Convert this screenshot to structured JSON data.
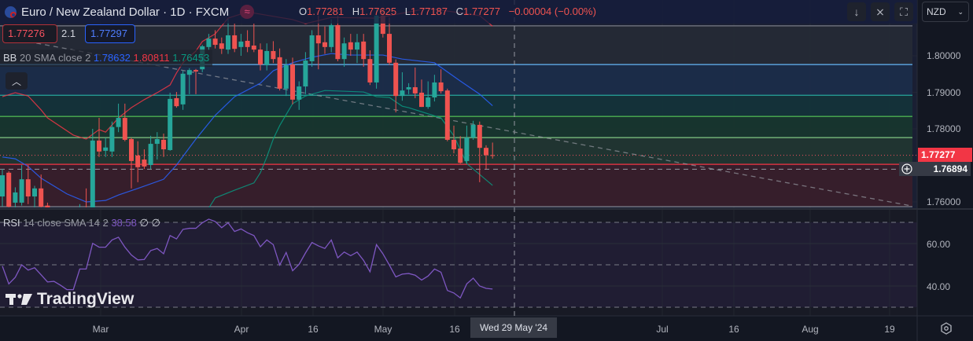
{
  "header": {
    "symbol_title": "Euro / New Zealand Dollar · 1D · FXCM",
    "ohlc": [
      {
        "key": "O",
        "value": "1.77281"
      },
      {
        "key": "H",
        "value": "1.77625"
      },
      {
        "key": "L",
        "value": "1.77187"
      },
      {
        "key": "C",
        "value": "1.77277"
      }
    ],
    "change": "−0.00004 (−0.00%)",
    "currency": "NZD"
  },
  "quotes": {
    "sell": "1.77276",
    "spread": "2.1",
    "buy": "1.77297"
  },
  "bb_legend": {
    "label": "BB",
    "params": "20 SMA close 2",
    "basis": "1.78632",
    "upper": "1.80811",
    "lower": "1.76453"
  },
  "rsi_legend": {
    "label": "RSI",
    "params": "14 close SMA 14 2",
    "value": "38.58",
    "extra1": "∅",
    "extra2": "∅"
  },
  "price_axis": {
    "ticks": [
      "1.80000",
      "1.79000",
      "1.78000",
      "1.76000"
    ],
    "last_price": "1.77277",
    "crosshair_price": "1.76894"
  },
  "rsi_axis": {
    "ticks": [
      "60.00",
      "40.00"
    ]
  },
  "time_axis": {
    "labels": [
      "Mar",
      "Apr",
      "16",
      "May",
      "16",
      "Jul",
      "16",
      "Aug",
      "19"
    ],
    "crosshair_date": "Wed 29 May '24"
  },
  "brand": "TradingView",
  "colors": {
    "up": "#26a69a",
    "down": "#ef5350",
    "bb_basis": "#2962ff",
    "bb_upper": "#f23645",
    "bb_lower": "#089981",
    "rsi": "#7e57c2"
  },
  "icons": [
    "scroll-down-icon",
    "collapse-icon",
    "fullscreen-icon",
    "chevron-down-icon",
    "plus-circle-icon",
    "settings-icon"
  ],
  "chart_data": {
    "type": "candlestick",
    "ohlc": [
      [
        1.7615,
        1.769,
        1.7587,
        1.7673
      ],
      [
        1.768,
        1.7684,
        1.7575,
        1.7587
      ],
      [
        1.7598,
        1.764,
        1.758,
        1.7626
      ],
      [
        1.7598,
        1.7701,
        1.759,
        1.7662
      ],
      [
        1.7662,
        1.7701,
        1.7594,
        1.7615
      ],
      [
        1.7615,
        1.7644,
        1.758,
        1.7637
      ],
      [
        1.7637,
        1.7675,
        1.757,
        1.7587
      ],
      [
        1.759,
        1.7598,
        1.756,
        1.757
      ],
      [
        1.757,
        1.758,
        1.753,
        1.7545
      ],
      [
        1.7545,
        1.756,
        1.751,
        1.7525
      ],
      [
        1.7525,
        1.755,
        1.75,
        1.754
      ],
      [
        1.754,
        1.7565,
        1.7515,
        1.753
      ],
      [
        1.753,
        1.7594,
        1.752,
        1.756
      ],
      [
        1.758,
        1.7637,
        1.754,
        1.756
      ],
      [
        1.755,
        1.78,
        1.754,
        1.7768
      ],
      [
        1.7768,
        1.783,
        1.7723,
        1.7738
      ],
      [
        1.774,
        1.7776,
        1.7723,
        1.7749
      ],
      [
        1.7738,
        1.782,
        1.7723,
        1.7805
      ],
      [
        1.7805,
        1.7869,
        1.7791,
        1.783
      ],
      [
        1.783,
        1.7869,
        1.7766,
        1.777
      ],
      [
        1.7772,
        1.7776,
        1.7637,
        1.7712
      ],
      [
        1.7727,
        1.7766,
        1.7654,
        1.7695
      ],
      [
        1.7716,
        1.7744,
        1.769,
        1.7697
      ],
      [
        1.7701,
        1.7781,
        1.769,
        1.7759
      ],
      [
        1.7759,
        1.7791,
        1.7716,
        1.7772
      ],
      [
        1.777,
        1.7787,
        1.7723,
        1.7744
      ],
      [
        1.7742,
        1.7899,
        1.774,
        1.7882
      ],
      [
        1.7884,
        1.7901,
        1.7858,
        1.7862
      ],
      [
        1.7867,
        1.7959,
        1.7852,
        1.7951
      ],
      [
        1.7948,
        1.7966,
        1.7895,
        1.7961
      ],
      [
        1.7961,
        1.7964,
        1.7895,
        1.7957
      ],
      [
        1.7963,
        1.803,
        1.7955,
        1.8026
      ],
      [
        1.8024,
        1.806,
        1.8015,
        1.8047
      ],
      [
        1.8047,
        1.807,
        1.802,
        1.803
      ],
      [
        1.8034,
        1.805,
        1.8005,
        1.8019
      ],
      [
        1.8017,
        1.8101,
        1.8005,
        1.8056
      ],
      [
        1.8056,
        1.8088,
        1.801,
        1.8019
      ],
      [
        1.8024,
        1.806,
        1.8,
        1.8039
      ],
      [
        1.8041,
        1.807,
        1.801,
        1.8024
      ],
      [
        1.8028,
        1.8088,
        1.801,
        1.8017
      ],
      [
        1.8017,
        1.8034,
        1.796,
        1.7976
      ],
      [
        1.7974,
        1.8034,
        1.796,
        1.8013
      ],
      [
        1.8013,
        1.804,
        1.798,
        1.7991
      ],
      [
        1.7996,
        1.802,
        1.7905,
        1.791
      ],
      [
        1.791,
        1.7991,
        1.789,
        1.7974
      ],
      [
        1.7976,
        1.7995,
        1.7867,
        1.788
      ],
      [
        1.788,
        1.793,
        1.7852,
        1.7916
      ],
      [
        1.7916,
        1.801,
        1.7895,
        1.7987
      ],
      [
        1.7985,
        1.807,
        1.797,
        1.8056
      ],
      [
        1.8056,
        1.811,
        1.7963,
        1.8034
      ],
      [
        1.8037,
        1.808,
        1.8005,
        1.8024
      ],
      [
        1.8024,
        1.81,
        1.801,
        1.8084
      ],
      [
        1.8084,
        1.811,
        1.7985,
        1.7991
      ],
      [
        1.7991,
        1.805,
        1.797,
        1.8034
      ],
      [
        1.8037,
        1.806,
        1.8,
        1.8017
      ],
      [
        1.8017,
        1.806,
        1.798,
        1.8037
      ],
      [
        1.8039,
        1.806,
        1.797,
        1.7991
      ],
      [
        1.7991,
        1.8015,
        1.792,
        1.7927
      ],
      [
        1.7927,
        1.813,
        1.791,
        1.811
      ],
      [
        1.811,
        1.813,
        1.805,
        1.806
      ],
      [
        1.806,
        1.8105,
        1.7975,
        1.7981
      ],
      [
        1.7981,
        1.799,
        1.7845,
        1.789
      ],
      [
        1.789,
        1.7955,
        1.7877,
        1.7905
      ],
      [
        1.7908,
        1.7925,
        1.7895,
        1.7914
      ],
      [
        1.7914,
        1.7968,
        1.7884,
        1.7897
      ],
      [
        1.7899,
        1.7935,
        1.786,
        1.786
      ],
      [
        1.786,
        1.793,
        1.7855,
        1.7886
      ],
      [
        1.7886,
        1.7948,
        1.7875,
        1.7927
      ],
      [
        1.7927,
        1.7963,
        1.7897,
        1.7903
      ],
      [
        1.7905,
        1.791,
        1.7766,
        1.777
      ],
      [
        1.777,
        1.7809,
        1.7733,
        1.7744
      ],
      [
        1.7746,
        1.778,
        1.7705,
        1.7707
      ],
      [
        1.7712,
        1.7809,
        1.7705,
        1.7776
      ],
      [
        1.7776,
        1.7822,
        1.777,
        1.7811
      ],
      [
        1.7811,
        1.782,
        1.7654,
        1.7748
      ],
      [
        1.7748,
        1.7755,
        1.769,
        1.7728
      ],
      [
        1.77281,
        1.77625,
        1.77187,
        1.77277
      ]
    ],
    "bb_upper": [
      [
        0,
        1.7888
      ],
      [
        2,
        1.7899
      ],
      [
        4,
        1.789
      ],
      [
        6,
        1.7852
      ],
      [
        7,
        1.783
      ],
      [
        11,
        1.7783
      ],
      [
        13,
        1.7772
      ],
      [
        15,
        1.7798
      ],
      [
        16,
        1.7791
      ],
      [
        18,
        1.783
      ],
      [
        20,
        1.7858
      ],
      [
        22,
        1.788
      ],
      [
        24,
        1.7899
      ],
      [
        26,
        1.792
      ],
      [
        27,
        1.7953
      ],
      [
        28,
        1.7981
      ],
      [
        30,
        1.8013
      ],
      [
        31,
        1.8039
      ],
      [
        33,
        1.806
      ],
      [
        35,
        1.8103
      ],
      [
        38,
        1.812
      ],
      [
        45,
        1.8099
      ],
      [
        47,
        1.8088
      ],
      [
        51,
        1.8105
      ],
      [
        58,
        1.8103
      ],
      [
        66,
        1.813
      ],
      [
        74,
        1.811
      ],
      [
        76,
        1.80811
      ]
    ],
    "bb_basis": [
      [
        0,
        1.7723
      ],
      [
        2,
        1.7718
      ],
      [
        4,
        1.7697
      ],
      [
        6,
        1.7665
      ],
      [
        10,
        1.7622
      ],
      [
        13,
        1.76
      ],
      [
        16,
        1.7604
      ],
      [
        18,
        1.7619
      ],
      [
        21,
        1.7637
      ],
      [
        25,
        1.7662
      ],
      [
        27,
        1.7701
      ],
      [
        30,
        1.7772
      ],
      [
        33,
        1.7837
      ],
      [
        36,
        1.7888
      ],
      [
        40,
        1.7925
      ],
      [
        42,
        1.7959
      ],
      [
        45,
        1.7981
      ],
      [
        48,
        1.7996
      ],
      [
        51,
        1.8006
      ],
      [
        54,
        1.8002
      ],
      [
        59,
        1.8002
      ],
      [
        62,
        1.7991
      ],
      [
        67,
        1.7981
      ],
      [
        71,
        1.7931
      ],
      [
        74,
        1.7895
      ],
      [
        76,
        1.78632
      ]
    ],
    "bb_lower": [
      [
        31,
        1.755
      ],
      [
        32,
        1.7583
      ],
      [
        33,
        1.7611
      ],
      [
        36,
        1.7632
      ],
      [
        39,
        1.7652
      ],
      [
        40,
        1.768
      ],
      [
        41,
        1.7723
      ],
      [
        42,
        1.7772
      ],
      [
        43,
        1.7809
      ],
      [
        45,
        1.7869
      ],
      [
        47,
        1.789
      ],
      [
        50,
        1.7905
      ],
      [
        56,
        1.7901
      ],
      [
        58,
        1.7888
      ],
      [
        60,
        1.7886
      ],
      [
        62,
        1.7862
      ],
      [
        63,
        1.7858
      ],
      [
        68,
        1.783
      ],
      [
        70,
        1.7781
      ],
      [
        72,
        1.7705
      ],
      [
        76,
        1.76453
      ]
    ],
    "rsi": [
      49.4,
      41.0,
      44.1,
      50.0,
      47.5,
      48.6,
      45.3,
      41.9,
      42.2,
      40.4,
      38.3,
      38.3,
      48.0,
      48.0,
      60.1,
      58.3,
      58.3,
      61.7,
      63.0,
      58.3,
      54.6,
      52.3,
      52.5,
      56.7,
      57.7,
      55.2,
      63.8,
      62.2,
      66.7,
      67.2,
      67.2,
      69.8,
      71.5,
      70.4,
      67.5,
      69.8,
      65.7,
      66.9,
      65.1,
      63.8,
      58.5,
      61.7,
      59.5,
      49.9,
      55.8,
      47.2,
      50.2,
      55.6,
      60.5,
      58.9,
      57.7,
      61.7,
      53.3,
      56.0,
      54.3,
      56.0,
      52.1,
      46.7,
      59.5,
      55.2,
      49.9,
      44.3,
      45.6,
      45.9,
      45.1,
      42.8,
      44.7,
      48.0,
      46.5,
      37.9,
      36.7,
      34.4,
      41.0,
      43.7,
      40.0,
      38.9,
      38.58
    ],
    "rsi_bands": [
      70,
      50,
      30
    ],
    "levels": [
      {
        "price": 1.8082,
        "color": "#787b86",
        "fill": "#262a35"
      },
      {
        "price": 1.7976,
        "color": "#64b5f6",
        "fill": "#1c2d4a"
      },
      {
        "price": 1.7892,
        "color": "#26a69a",
        "fill": "#14333a"
      },
      {
        "price": 1.7834,
        "color": "#4caf50",
        "fill": "#17362e"
      },
      {
        "price": 1.7776,
        "color": "#81c784",
        "fill": "#213631"
      },
      {
        "price": 1.7703,
        "color": "#f23645",
        "fill": "#3a1e2a"
      },
      {
        "price": 1.7587,
        "color": "#787b86",
        "fill": null
      }
    ],
    "trendline": [
      [
        0,
        1.8052
      ],
      [
        141,
        1.7589
      ]
    ],
    "last_price": 1.77277,
    "crosshair_price": 1.76894,
    "price_ticks": [
      1.8,
      1.79,
      1.78,
      1.76
    ],
    "rsi_ticks": [
      60,
      40
    ]
  }
}
